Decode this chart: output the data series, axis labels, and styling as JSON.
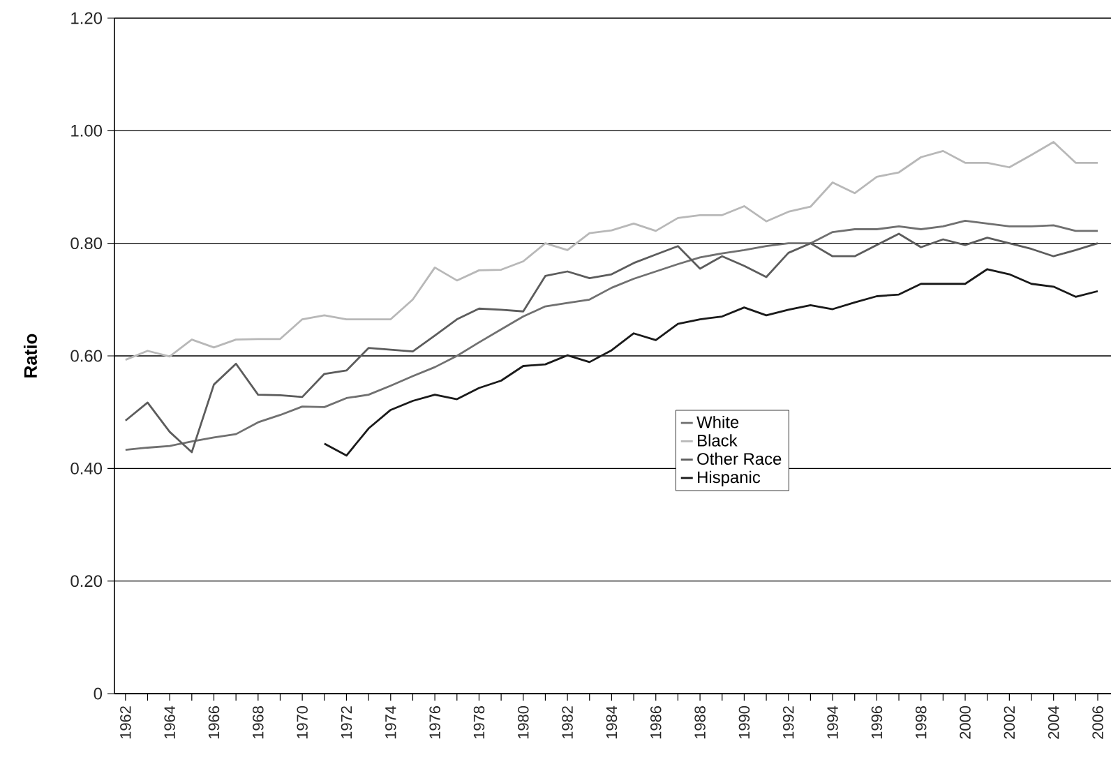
{
  "chart_data": {
    "type": "line",
    "ylabel": "Ratio",
    "categories": [
      "1962",
      null,
      "1964",
      null,
      "1966",
      null,
      "1968",
      null,
      "1970",
      null,
      "1972",
      null,
      "1974",
      null,
      "1976",
      null,
      "1978",
      null,
      "1980",
      null,
      "1982",
      null,
      "1984",
      null,
      "1986",
      null,
      "1988",
      null,
      "1990",
      null,
      "1992",
      null,
      "1994",
      null,
      "1996",
      null,
      "1998",
      null,
      "2000",
      null,
      "2002",
      null,
      "2004",
      null,
      "2006"
    ],
    "series": [
      {
        "name": "White",
        "color": "#707070",
        "values": [
          0.433,
          0.437,
          0.44,
          0.448,
          0.455,
          0.461,
          0.482,
          0.495,
          0.51,
          0.509,
          0.525,
          0.531,
          0.547,
          0.564,
          0.58,
          0.6,
          0.624,
          0.647,
          0.67,
          0.688,
          0.694,
          0.7,
          0.721,
          0.737,
          0.75,
          0.763,
          0.775,
          0.782,
          0.788,
          0.795,
          0.8,
          0.8,
          0.82,
          0.825,
          0.825,
          0.83,
          0.825,
          0.83,
          0.84,
          0.835,
          0.83,
          0.83,
          0.832,
          0.822,
          0.822
        ]
      },
      {
        "name": "Black",
        "color": "#b8b8b8",
        "values": [
          0.593,
          0.609,
          0.599,
          0.629,
          0.615,
          0.629,
          0.63,
          0.63,
          0.665,
          0.672,
          0.665,
          0.665,
          0.665,
          0.7,
          0.757,
          0.734,
          0.752,
          0.753,
          0.768,
          0.8,
          0.788,
          0.818,
          0.823,
          0.835,
          0.822,
          0.845,
          0.85,
          0.85,
          0.866,
          0.839,
          0.856,
          0.865,
          0.908,
          0.889,
          0.918,
          0.926,
          0.953,
          0.964,
          0.943,
          0.943,
          0.935,
          0.957,
          0.98,
          0.943,
          0.943
        ]
      },
      {
        "name": "Other Race",
        "color": "#5c5c5c",
        "values": [
          0.485,
          0.517,
          0.465,
          0.429,
          0.549,
          0.586,
          0.531,
          0.53,
          0.527,
          0.568,
          0.574,
          0.614,
          0.611,
          0.608,
          0.636,
          0.665,
          0.684,
          0.682,
          0.679,
          0.742,
          0.75,
          0.738,
          0.745,
          0.765,
          0.78,
          0.795,
          0.755,
          0.777,
          0.76,
          0.74,
          0.783,
          0.8,
          0.777,
          0.777,
          0.797,
          0.817,
          0.793,
          0.807,
          0.797,
          0.81,
          0.8,
          0.79,
          0.777,
          0.788,
          0.8
        ]
      },
      {
        "name": "Hispanic",
        "color": "#1a1a1a",
        "values": [
          null,
          null,
          null,
          null,
          null,
          null,
          null,
          null,
          null,
          0.444,
          0.423,
          0.471,
          0.504,
          0.52,
          0.531,
          0.523,
          0.543,
          0.556,
          0.582,
          0.585,
          0.601,
          0.589,
          0.61,
          0.64,
          0.628,
          0.657,
          0.665,
          0.67,
          0.686,
          0.672,
          0.682,
          0.69,
          0.683,
          0.695,
          0.706,
          0.709,
          0.728,
          0.728,
          0.728,
          0.754,
          0.745,
          0.728,
          0.723,
          0.705,
          0.715
        ]
      }
    ],
    "ylim": [
      0,
      1.2
    ],
    "yticks": [
      0,
      {
        "value": 0.2,
        "label": "0.20"
      },
      {
        "value": 0.4,
        "label": "0.40"
      },
      {
        "value": 0.6,
        "label": "0.60"
      },
      {
        "value": 0.8,
        "label": "0.80"
      },
      {
        "value": 1.0,
        "label": "1.00"
      },
      {
        "value": 1.2,
        "label": "1.20"
      }
    ],
    "grid": "y",
    "legend": "center",
    "marker": "none",
    "line_style": "solid"
  }
}
